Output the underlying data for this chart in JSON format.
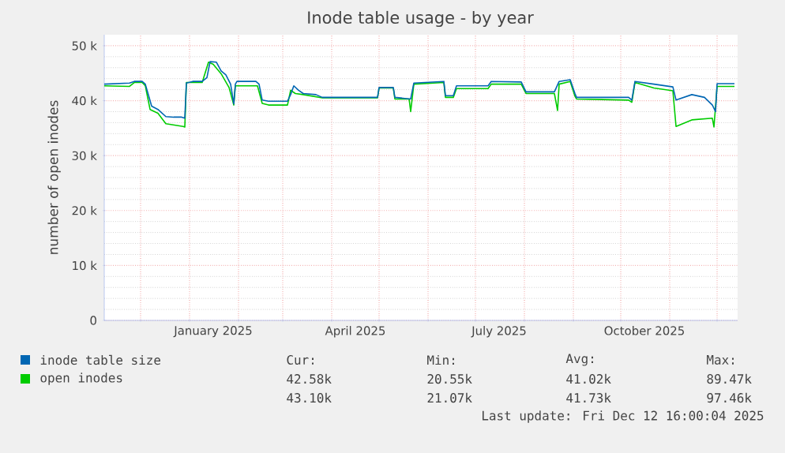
{
  "chart_data": {
    "type": "line",
    "title": "Inode table usage - by year",
    "ylabel": "number of open inodes",
    "xlim": [
      "2024-11-08",
      "2025-12-14"
    ],
    "ylim": [
      0,
      52000
    ],
    "xticks": [
      {
        "value": "2024-12-01",
        "label": null
      },
      {
        "value": "2025-01-01",
        "label": null
      },
      {
        "value": "2025-01-16",
        "label": "January 2025"
      },
      {
        "value": "2025-02-01",
        "label": null
      },
      {
        "value": "2025-03-01",
        "label": null
      },
      {
        "value": "2025-04-01",
        "label": null
      },
      {
        "value": "2025-04-16",
        "label": "April 2025"
      },
      {
        "value": "2025-05-01",
        "label": null
      },
      {
        "value": "2025-06-01",
        "label": null
      },
      {
        "value": "2025-07-01",
        "label": null
      },
      {
        "value": "2025-07-16",
        "label": "July 2025"
      },
      {
        "value": "2025-08-01",
        "label": null
      },
      {
        "value": "2025-09-01",
        "label": null
      },
      {
        "value": "2025-10-01",
        "label": null
      },
      {
        "value": "2025-10-16",
        "label": "October 2025"
      },
      {
        "value": "2025-11-01",
        "label": null
      },
      {
        "value": "2025-12-01",
        "label": null
      }
    ],
    "yticks": [
      0,
      {
        "value": 10000,
        "label": "10 k"
      },
      {
        "value": 20000,
        "label": "20 k"
      },
      {
        "value": 30000,
        "label": "30 k"
      },
      {
        "value": 40000,
        "label": "40 k"
      },
      {
        "value": 50000,
        "label": "50 k"
      }
    ],
    "grid": true,
    "legend": "bottom",
    "annotations": [
      "Cur:",
      "Min:",
      "Avg:",
      "Max:",
      "42.58k",
      "20.55k",
      "41.02k",
      "89.47k",
      "43.10k",
      "21.07k",
      "41.73k",
      "97.46k",
      "Last update: Fri Dec 12 16:00:04 2025"
    ],
    "series": [
      {
        "name": "open inodes",
        "color": "#00cc00",
        "x": [
          "2024-11-08",
          "2024-11-24",
          "2024-11-27",
          "2024-12-02",
          "2024-12-04",
          "2024-12-07",
          "2024-12-12",
          "2024-12-17",
          "2024-12-28",
          "2024-12-29",
          "2024-12-30",
          "2025-01-09",
          "2025-01-13",
          "2025-01-16",
          "2025-01-21",
          "2025-01-26",
          "2025-01-29",
          "2025-01-30",
          "2025-02-13",
          "2025-02-16",
          "2025-02-20",
          "2025-03-04",
          "2025-03-06",
          "2025-03-09",
          "2025-03-14",
          "2025-03-26",
          "2025-04-30",
          "2025-05-01",
          "2025-05-10",
          "2025-05-11",
          "2025-05-20",
          "2025-05-21",
          "2025-05-23",
          "2025-06-11",
          "2025-06-12",
          "2025-06-17",
          "2025-06-19",
          "2025-07-09",
          "2025-07-11",
          "2025-07-30",
          "2025-08-02",
          "2025-08-20",
          "2025-08-22",
          "2025-08-23",
          "2025-08-30",
          "2025-09-02",
          "2025-09-03",
          "2025-10-06",
          "2025-10-08",
          "2025-10-10",
          "2025-10-22",
          "2025-11-03",
          "2025-11-05",
          "2025-11-15",
          "2025-11-28",
          "2025-11-29",
          "2025-12-01",
          "2025-12-12"
        ],
        "values": [
          42700,
          42600,
          43300,
          43300,
          42700,
          38400,
          37700,
          35800,
          35300,
          35200,
          43300,
          43300,
          47000,
          46600,
          44900,
          42400,
          39200,
          42700,
          42700,
          39500,
          39200,
          39200,
          41900,
          41300,
          41100,
          40500,
          40500,
          42300,
          42300,
          40300,
          40300,
          38000,
          43000,
          43300,
          40600,
          40600,
          42200,
          42200,
          43000,
          43000,
          41300,
          41300,
          38200,
          43000,
          43500,
          40800,
          40300,
          40100,
          39700,
          43300,
          42300,
          41800,
          35300,
          36500,
          36800,
          35200,
          42600,
          42600
        ]
      },
      {
        "name": "inode table size",
        "color": "#0066b3",
        "x": [
          "2024-11-08",
          "2024-11-24",
          "2024-11-27",
          "2024-12-02",
          "2024-12-04",
          "2024-12-08",
          "2024-12-12",
          "2024-12-17",
          "2024-12-22",
          "2024-12-27",
          "2024-12-29",
          "2024-12-30",
          "2025-01-03",
          "2025-01-09",
          "2025-01-12",
          "2025-01-14",
          "2025-01-18",
          "2025-01-21",
          "2025-01-24",
          "2025-01-27",
          "2025-01-29",
          "2025-01-30",
          "2025-01-31",
          "2025-02-12",
          "2025-02-14",
          "2025-02-16",
          "2025-02-20",
          "2025-03-04",
          "2025-03-06",
          "2025-03-08",
          "2025-03-11",
          "2025-03-14",
          "2025-03-22",
          "2025-03-26",
          "2025-04-30",
          "2025-05-01",
          "2025-05-10",
          "2025-05-11",
          "2025-05-21",
          "2025-05-23",
          "2025-06-11",
          "2025-06-12",
          "2025-06-17",
          "2025-06-19",
          "2025-07-09",
          "2025-07-11",
          "2025-07-30",
          "2025-08-02",
          "2025-08-20",
          "2025-08-23",
          "2025-08-30",
          "2025-09-02",
          "2025-09-03",
          "2025-10-06",
          "2025-10-08",
          "2025-10-10",
          "2025-10-22",
          "2025-11-03",
          "2025-11-05",
          "2025-11-15",
          "2025-11-23",
          "2025-11-28",
          "2025-11-30",
          "2025-12-01",
          "2025-12-12"
        ],
        "values": [
          43000,
          43200,
          43500,
          43500,
          43000,
          39000,
          38400,
          37100,
          37000,
          37000,
          36800,
          43200,
          43500,
          43500,
          44200,
          47100,
          47000,
          45400,
          44700,
          43000,
          39400,
          43000,
          43500,
          43500,
          43000,
          40100,
          39900,
          39900,
          41100,
          42700,
          41900,
          41300,
          41100,
          40600,
          40600,
          42400,
          42400,
          40600,
          40300,
          43200,
          43500,
          40900,
          40900,
          42700,
          42700,
          43500,
          43400,
          41600,
          41600,
          43500,
          43800,
          41300,
          40600,
          40600,
          40100,
          43500,
          43000,
          42500,
          40100,
          41100,
          40600,
          39200,
          38000,
          43100,
          43100
        ]
      }
    ]
  }
}
